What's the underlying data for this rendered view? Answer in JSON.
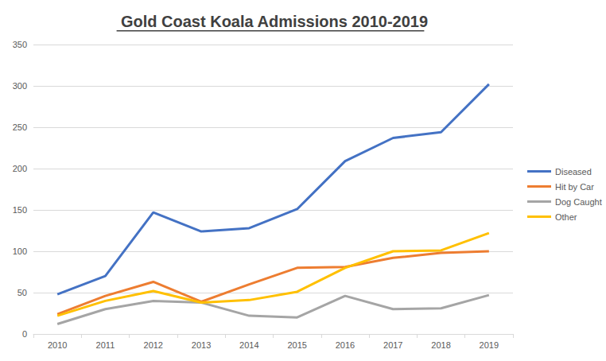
{
  "chart_data": {
    "type": "line",
    "title": "Gold Coast Koala Admissions 2010-2019",
    "categories": [
      "2010",
      "2011",
      "2012",
      "2013",
      "2014",
      "2015",
      "2016",
      "2017",
      "2018",
      "2019"
    ],
    "series": [
      {
        "name": "Diseased",
        "color": "#4472c4",
        "values": [
          48,
          70,
          147,
          124,
          128,
          151,
          209,
          237,
          244,
          302
        ]
      },
      {
        "name": "Hit by Car",
        "color": "#ed7d31",
        "values": [
          24,
          46,
          63,
          39,
          60,
          80,
          81,
          92,
          98,
          100
        ]
      },
      {
        "name": "Dog Caught",
        "color": "#a5a5a5",
        "values": [
          12,
          30,
          40,
          38,
          22,
          20,
          46,
          30,
          31,
          47
        ]
      },
      {
        "name": "Other",
        "color": "#ffc000",
        "values": [
          22,
          40,
          52,
          38,
          41,
          51,
          80,
          100,
          101,
          122
        ]
      }
    ],
    "ylim": [
      0,
      350
    ],
    "yticks": [
      0,
      50,
      100,
      150,
      200,
      250,
      300,
      350
    ],
    "grid": true,
    "legend": "right"
  }
}
